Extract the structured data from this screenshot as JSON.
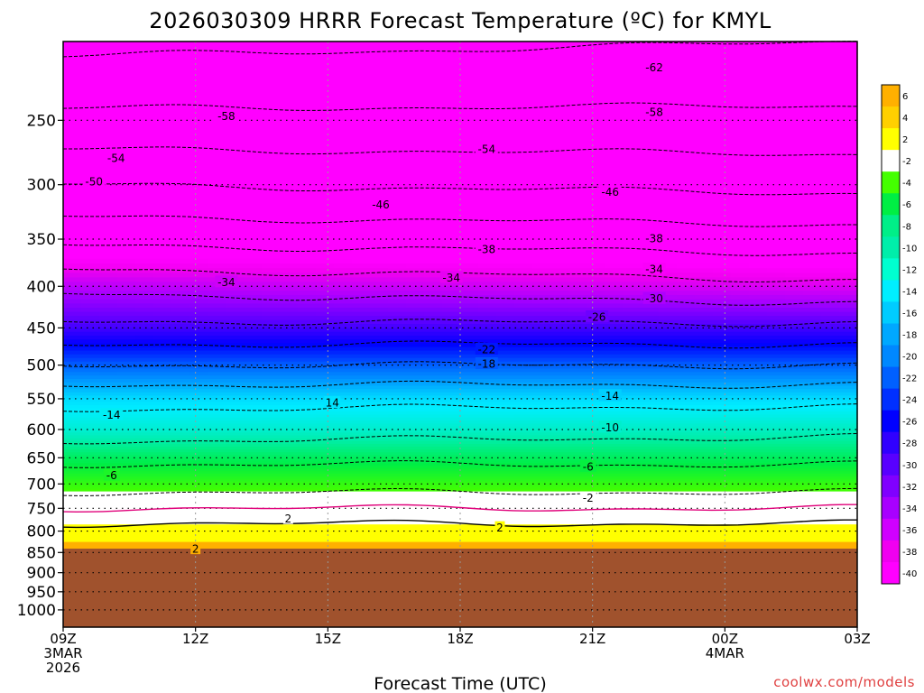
{
  "page": {
    "title": "2026030309 HRRR Forecast Temperature (ºC) for KMYL",
    "credit": "coolwx.com/models"
  },
  "chart_data": {
    "type": "contour",
    "title": "2026030309 HRRR Forecast Temperature (ºC) for KMYL",
    "xlabel": "Forecast Time (UTC)",
    "ylabel": "",
    "x_ticks": [
      {
        "hour": 0,
        "label": "09Z",
        "sub": [
          "3MAR",
          "2026"
        ]
      },
      {
        "hour": 3,
        "label": "12Z",
        "sub": []
      },
      {
        "hour": 6,
        "label": "15Z",
        "sub": []
      },
      {
        "hour": 9,
        "label": "18Z",
        "sub": []
      },
      {
        "hour": 12,
        "label": "21Z",
        "sub": []
      },
      {
        "hour": 15,
        "label": "00Z",
        "sub": [
          "4MAR"
        ]
      },
      {
        "hour": 18,
        "label": "03Z",
        "sub": []
      }
    ],
    "xlim": [
      0,
      18
    ],
    "y_ticks": [
      "250",
      "300",
      "350",
      "400",
      "450",
      "500",
      "550",
      "600",
      "650",
      "700",
      "750",
      "800",
      "850",
      "900",
      "950",
      "1000"
    ],
    "y_axis": "pressure (hPa), log scale, inverted",
    "ylim": [
      1050,
      200
    ],
    "surface_pressure": 850,
    "surface_color": "#a0522d",
    "temperature_profile": {
      "pressure": [
        200,
        250,
        300,
        350,
        400,
        450,
        500,
        550,
        600,
        650,
        700,
        750,
        800,
        850
      ],
      "temp_start": [
        -63,
        -57,
        -50,
        -43,
        -35,
        -29,
        -22,
        -15,
        -12,
        -7,
        -3,
        0,
        3,
        5
      ],
      "temp_end": [
        -62,
        -57,
        -51,
        -44,
        -37,
        -29,
        -22,
        -15,
        -11,
        -7,
        -3,
        0,
        3,
        5
      ]
    },
    "colorbar": {
      "ticks": [
        "6",
        "4",
        "2",
        "-2",
        "-4",
        "-6",
        "-8",
        "-10",
        "-12",
        "-14",
        "-16",
        "-18",
        "-20",
        "-22",
        "-24",
        "-26",
        "-28",
        "-30",
        "-32",
        "-34",
        "-36",
        "-38",
        "-40"
      ],
      "colors": [
        "#ffb000",
        "#ffd000",
        "#ffff00",
        "#ffffff",
        "#44ff00",
        "#00ee44",
        "#00ee88",
        "#00eeaa",
        "#00ffd0",
        "#00eeff",
        "#00ccff",
        "#00a8ff",
        "#0088ff",
        "#0060ff",
        "#0030ff",
        "#0000ff",
        "#3000ff",
        "#5800ff",
        "#8000ff",
        "#a800ff",
        "#d000ff",
        "#f000f0",
        "#ff00ff"
      ]
    },
    "contour_labels": [
      {
        "hour": 13.4,
        "p": 215,
        "text": "-62"
      },
      {
        "hour": 13.4,
        "p": 244,
        "text": "-58"
      },
      {
        "hour": 3.7,
        "p": 247,
        "text": "-58"
      },
      {
        "hour": 9.6,
        "p": 271,
        "text": "-54"
      },
      {
        "hour": 1.2,
        "p": 278,
        "text": "-54"
      },
      {
        "hour": 0.7,
        "p": 297,
        "text": "-50"
      },
      {
        "hour": 7.2,
        "p": 317,
        "text": "-46"
      },
      {
        "hour": 12.4,
        "p": 306,
        "text": "-46"
      },
      {
        "hour": 13.4,
        "p": 349,
        "text": "-38"
      },
      {
        "hour": 9.6,
        "p": 360,
        "text": "-38"
      },
      {
        "hour": 13.4,
        "p": 381,
        "text": "-34"
      },
      {
        "hour": 8.8,
        "p": 390,
        "text": "-34"
      },
      {
        "hour": 3.7,
        "p": 395,
        "text": "-34"
      },
      {
        "hour": 13.4,
        "p": 414,
        "text": "-30"
      },
      {
        "hour": 12.1,
        "p": 436,
        "text": "-26"
      },
      {
        "hour": 9.6,
        "p": 478,
        "text": "-22"
      },
      {
        "hour": 9.6,
        "p": 498,
        "text": "-18"
      },
      {
        "hour": 12.4,
        "p": 545,
        "text": "-14"
      },
      {
        "hour": 6.1,
        "p": 556,
        "text": "14"
      },
      {
        "hour": 1.1,
        "p": 575,
        "text": "-14"
      },
      {
        "hour": 12.4,
        "p": 596,
        "text": "-10"
      },
      {
        "hour": 11.9,
        "p": 666,
        "text": "-6"
      },
      {
        "hour": 1.1,
        "p": 683,
        "text": "-6"
      },
      {
        "hour": 11.9,
        "p": 728,
        "text": "-2"
      },
      {
        "hour": 5.1,
        "p": 772,
        "text": "2"
      },
      {
        "hour": 9.9,
        "p": 792,
        "text": "2"
      },
      {
        "hour": 3.0,
        "p": 841,
        "text": "2"
      }
    ]
  }
}
